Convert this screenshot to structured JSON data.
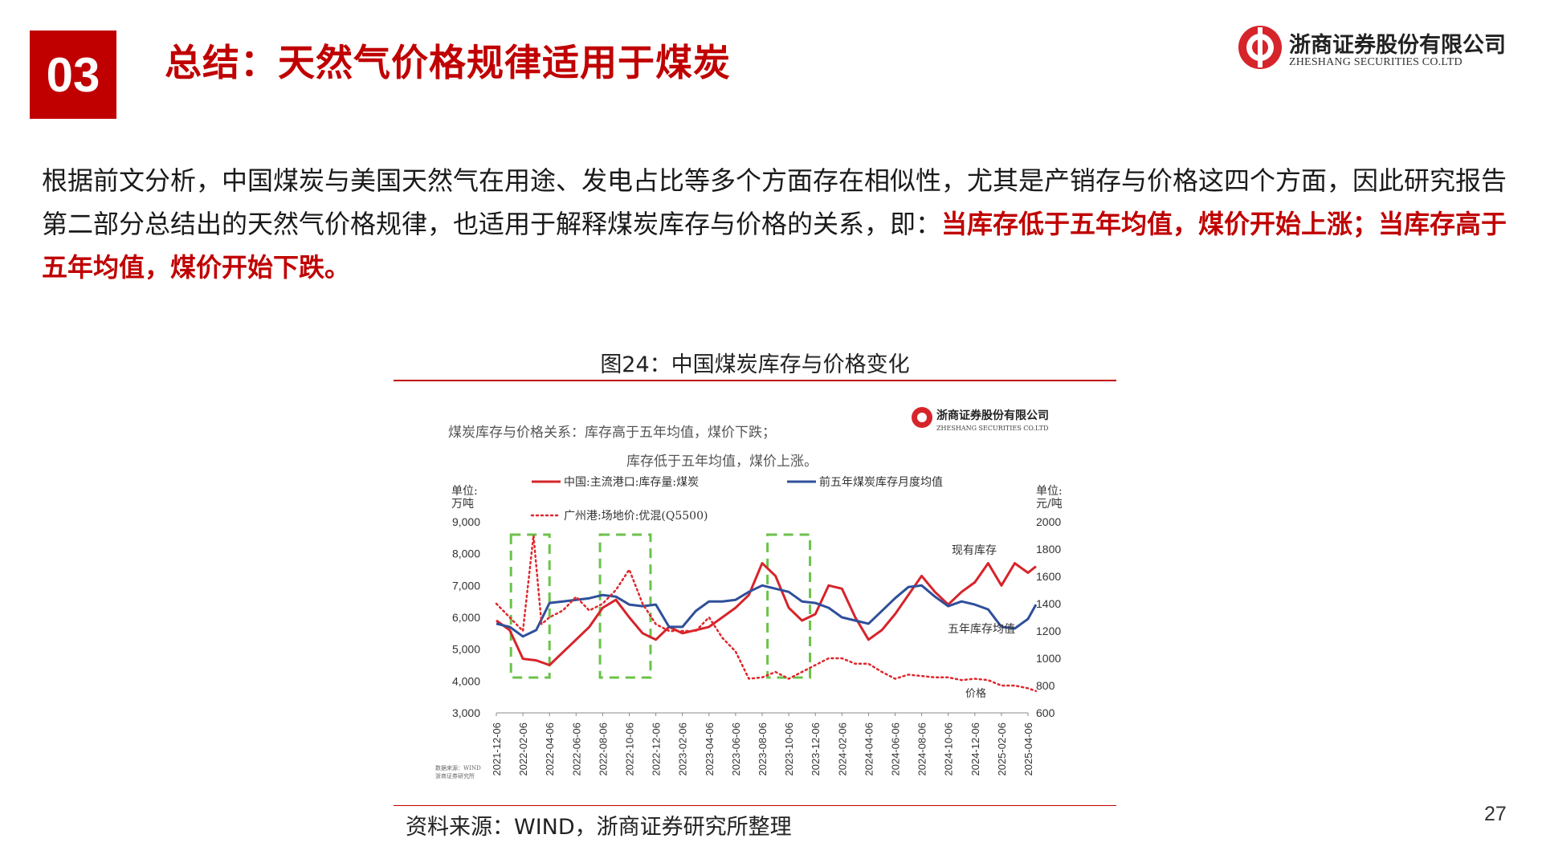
{
  "header": {
    "section_number": "03",
    "title": "总结：天然气价格规律适用于煤炭",
    "logo_cn": "浙商证券股份有限公司",
    "logo_en": "ZHESHANG SECURITIES CO.LTD"
  },
  "body": {
    "paragraph_plain": "根据前文分析，中国煤炭与美国天然气在用途、发电占比等多个方面存在相似性，尤其是产销存与价格这四个方面，因此研究报告第二部分总结出的天然气价格规律，也适用于解释煤炭库存与价格的关系，即：",
    "paragraph_highlight": "当库存低于五年均值，煤价开始上涨；当库存高于五年均值，煤价开始下跌。"
  },
  "figure": {
    "title": "图24：中国煤炭库存与价格变化",
    "source": "资料来源：WIND，浙商证券研究所整理"
  },
  "page_number": "27",
  "colors": {
    "brand_red": "#c00000",
    "inventory_line": "#d6242b",
    "avg_line": "#2f4f9a",
    "price_line": "#e0262c",
    "highlight_box": "#6cc24a"
  },
  "chart_data": {
    "type": "line",
    "annotation_top": [
      "煤炭库存与价格关系：库存高于五年均值，煤价下跌；",
      "库存低于五年均值，煤价上涨。"
    ],
    "inner_logo_cn": "浙商证券股份有限公司",
    "inner_logo_en": "ZHESHANG SECURITIES CO.LTD",
    "left_unit": [
      "单位:",
      "万吨"
    ],
    "right_unit": [
      "单位:",
      "元/吨"
    ],
    "left_ticks": [
      "9,000",
      "8,000",
      "7,000",
      "6,000",
      "5,000",
      "4,000",
      "3,000"
    ],
    "right_ticks": [
      "2000",
      "1800",
      "1600",
      "1400",
      "1200",
      "1000",
      "800",
      "600"
    ],
    "ylim_left": [
      3000,
      9000
    ],
    "ylim_right": [
      600,
      2000
    ],
    "x_ticks": [
      "2021-12-06",
      "2022-02-06",
      "2022-04-06",
      "2022-06-06",
      "2022-08-06",
      "2022-10-06",
      "2022-12-06",
      "2023-02-06",
      "2023-04-06",
      "2023-06-06",
      "2023-08-06",
      "2023-10-06",
      "2023-12-06",
      "2024-02-06",
      "2024-04-06",
      "2024-06-06",
      "2024-08-06",
      "2024-10-06",
      "2024-12-06",
      "2025-02-06",
      "2025-04-06"
    ],
    "legend": [
      "中国:主流港口:库存量:煤炭",
      "前五年煤炭库存月度均值",
      "广州港:场地价:优混(Q5500)"
    ],
    "series": [
      {
        "name": "中国:主流港口:库存量:煤炭",
        "axis": "left",
        "style": "solid",
        "x": [
          0,
          0.5,
          1,
          1.5,
          2,
          2.5,
          3,
          3.5,
          4,
          4.5,
          5,
          5.5,
          6,
          6.5,
          7,
          7.5,
          8,
          8.5,
          9,
          9.5,
          10,
          10.5,
          11,
          11.5,
          12,
          12.5,
          13,
          13.5,
          14,
          14.5,
          15,
          15.5,
          16,
          16.5,
          17,
          17.5,
          18,
          18.5,
          19,
          19.5,
          20,
          20.3
        ],
        "values": [
          5900,
          5600,
          4700,
          4650,
          4500,
          4900,
          5300,
          5700,
          6300,
          6550,
          6000,
          5500,
          5300,
          5700,
          5500,
          5600,
          5700,
          6000,
          6300,
          6700,
          7700,
          7300,
          6300,
          5900,
          6100,
          7000,
          6900,
          6000,
          5300,
          5600,
          6100,
          6700,
          7300,
          6800,
          6400,
          6800,
          7100,
          7700,
          7000,
          7700,
          7400,
          7600
        ]
      },
      {
        "name": "前五年煤炭库存月度均值",
        "axis": "left",
        "style": "solid",
        "x": [
          0,
          0.5,
          1,
          1.5,
          2,
          2.5,
          3,
          3.5,
          4,
          4.5,
          5,
          5.5,
          6,
          6.5,
          7,
          7.5,
          8,
          8.5,
          9,
          9.5,
          10,
          10.5,
          11,
          11.5,
          12,
          12.5,
          13,
          13.5,
          14,
          14.5,
          15,
          15.5,
          16,
          16.5,
          17,
          17.5,
          18,
          18.5,
          19,
          19.5,
          20,
          20.3
        ],
        "values": [
          5800,
          5700,
          5400,
          5600,
          6450,
          6500,
          6550,
          6600,
          6700,
          6650,
          6400,
          6350,
          6400,
          5700,
          5700,
          6200,
          6500,
          6500,
          6550,
          6800,
          7000,
          6900,
          6800,
          6500,
          6450,
          6300,
          6000,
          5900,
          5800,
          6200,
          6600,
          6950,
          7000,
          6650,
          6350,
          6500,
          6400,
          6250,
          5700,
          5650,
          5950,
          6400
        ]
      },
      {
        "name": "广州港:场地价:优混(Q5500)",
        "axis": "right",
        "style": "dotted",
        "x": [
          0,
          0.5,
          1,
          1.4,
          1.7,
          2,
          2.5,
          3,
          3.5,
          4,
          4.5,
          5,
          5.5,
          6,
          6.5,
          7,
          7.5,
          8,
          8.5,
          9,
          9.5,
          10,
          10.5,
          11,
          11.5,
          12,
          12.5,
          13,
          13.5,
          14,
          14.5,
          15,
          15.5,
          16,
          16.5,
          17,
          17.5,
          18,
          18.5,
          19,
          19.5,
          20,
          20.3
        ],
        "values": [
          1400,
          1300,
          1200,
          1900,
          1250,
          1300,
          1350,
          1450,
          1350,
          1400,
          1500,
          1650,
          1400,
          1250,
          1200,
          1200,
          1200,
          1300,
          1150,
          1050,
          850,
          860,
          900,
          850,
          900,
          950,
          1000,
          1000,
          960,
          960,
          900,
          850,
          880,
          870,
          860,
          860,
          840,
          850,
          840,
          800,
          800,
          780,
          760
        ]
      }
    ],
    "highlight_boxes": [
      {
        "x_start": 0.55,
        "x_end": 2.0
      },
      {
        "x_start": 3.9,
        "x_end": 5.8
      },
      {
        "x_start": 10.2,
        "x_end": 11.8
      }
    ],
    "labels": {
      "current_inventory": "现有库存",
      "five_year_avg": "五年库存均值",
      "price": "价格"
    },
    "data_source_note": [
      "数据来源：WIND",
      "浙商证券研究所"
    ]
  }
}
